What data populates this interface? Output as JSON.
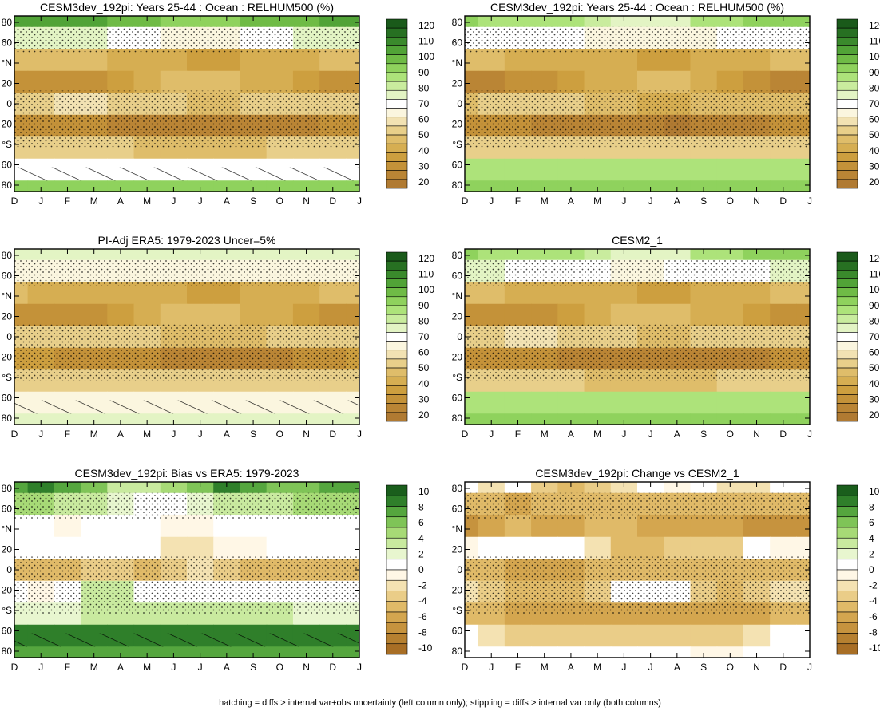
{
  "months": [
    "D",
    "J",
    "F",
    "M",
    "A",
    "M",
    "J",
    "J",
    "A",
    "S",
    "O",
    "N",
    "D",
    "J"
  ],
  "lat_ticks": [
    "80",
    "60",
    "°N",
    "20",
    "0",
    "20",
    "°S",
    "60",
    "80"
  ],
  "colors": {
    "abs": [
      "#b07a32",
      "#ba8535",
      "#c49239",
      "#cd9f3f",
      "#d6ae52",
      "#dfbd6a",
      "#e8cf8a",
      "#f2e2b3",
      "#fbf6df",
      "#ffffff",
      "#e3f4c4",
      "#c9ec9e",
      "#ade37a",
      "#8fd25d",
      "#6fbb46",
      "#51a337",
      "#3a8a2c",
      "#277022",
      "#1a5a1a"
    ],
    "diff": [
      "#a86e25",
      "#b68030",
      "#c6933e",
      "#d4a64f",
      "#e0ba68",
      "#eacd88",
      "#f4e2b2",
      "#fff7e6",
      "#ffffff",
      "#e8f6cf",
      "#c9ea9f",
      "#a7da76",
      "#7fc457",
      "#55a63e",
      "#2f7f2a",
      "#1a5e1c"
    ]
  },
  "colorbar_abs": {
    "labels": [
      "120",
      "110",
      "100",
      "90",
      "80",
      "70",
      "60",
      "50",
      "40",
      "30",
      "20"
    ]
  },
  "colorbar_diff": {
    "labels": [
      "10",
      "8",
      "6",
      "4",
      "2",
      "0",
      "-2",
      "-4",
      "-6",
      "-8",
      "-10"
    ]
  },
  "footnote": "hatching = diffs > internal var+obs uncertainty (left column only); stippling = diffs > internal var only (both columns)",
  "chart_data": [
    {
      "type": "heatmap",
      "title": "CESM3dev_192pi: Years 25-44 : Ocean : RELHUM500 (%)",
      "scale": "abs",
      "hatch": true,
      "x": [
        "D",
        "J",
        "F",
        "M",
        "A",
        "M",
        "J",
        "J",
        "A",
        "S",
        "O",
        "N",
        "D",
        "J"
      ],
      "y": [
        80,
        60,
        40,
        20,
        0,
        -20,
        -40,
        -60,
        -80
      ],
      "values": [
        [
          95,
          96,
          96,
          95,
          93,
          90,
          87,
          86,
          88,
          90,
          92,
          94,
          95,
          95
        ],
        [
          72,
          73,
          72,
          70,
          68,
          66,
          64,
          63,
          64,
          66,
          68,
          70,
          71,
          72
        ],
        [
          48,
          47,
          46,
          45,
          44,
          42,
          40,
          38,
          38,
          40,
          42,
          44,
          46,
          48
        ],
        [
          30,
          31,
          32,
          34,
          38,
          42,
          46,
          48,
          47,
          44,
          40,
          35,
          31,
          30
        ],
        [
          52,
          54,
          55,
          55,
          54,
          52,
          50,
          48,
          48,
          50,
          52,
          53,
          52,
          52
        ],
        [
          34,
          33,
          32,
          30,
          29,
          28,
          27,
          26,
          25,
          25,
          26,
          28,
          31,
          34
        ],
        [
          50,
          50,
          50,
          50,
          50,
          49,
          48,
          48,
          49,
          49,
          50,
          50,
          50,
          50
        ],
        [
          68,
          68,
          68,
          68,
          68,
          68,
          68,
          68,
          68,
          68,
          68,
          68,
          68,
          68
        ],
        [
          88,
          88,
          88,
          88,
          88,
          88,
          88,
          88,
          88,
          88,
          88,
          88,
          88,
          88
        ]
      ]
    },
    {
      "type": "heatmap",
      "title": "CESM3dev_192pi: Years 25-44 : Ocean : RELHUM500 (%)",
      "scale": "abs",
      "hatch": false,
      "x": [
        "D",
        "J",
        "F",
        "M",
        "A",
        "M",
        "J",
        "J",
        "A",
        "S",
        "O",
        "N",
        "D",
        "J"
      ],
      "y": [
        80,
        60,
        40,
        20,
        0,
        -20,
        -40,
        -60,
        -80
      ],
      "values": [
        [
          85,
          84,
          84,
          82,
          80,
          76,
          72,
          70,
          74,
          80,
          84,
          85,
          85,
          85
        ],
        [
          68,
          68,
          67,
          66,
          65,
          64,
          62,
          62,
          63,
          64,
          66,
          67,
          68,
          68
        ],
        [
          46,
          45,
          44,
          43,
          42,
          41,
          40,
          38,
          38,
          40,
          42,
          44,
          45,
          46
        ],
        [
          28,
          29,
          30,
          32,
          36,
          40,
          44,
          46,
          45,
          42,
          38,
          33,
          29,
          28
        ],
        [
          48,
          50,
          51,
          51,
          50,
          48,
          46,
          44,
          44,
          46,
          48,
          49,
          48,
          48
        ],
        [
          33,
          32,
          31,
          29,
          28,
          27,
          26,
          25,
          24,
          25,
          26,
          28,
          30,
          33
        ],
        [
          52,
          52,
          52,
          52,
          52,
          51,
          50,
          50,
          51,
          51,
          52,
          52,
          52,
          52
        ],
        [
          80,
          80,
          80,
          80,
          80,
          80,
          80,
          80,
          80,
          80,
          80,
          80,
          80,
          80
        ],
        [
          88,
          88,
          88,
          88,
          88,
          88,
          88,
          88,
          88,
          88,
          88,
          88,
          88,
          88
        ]
      ]
    },
    {
      "type": "heatmap",
      "title": "PI-Adj ERA5: 1979-2023 Uncer=5%",
      "scale": "abs",
      "hatch": true,
      "x": [
        "D",
        "J",
        "F",
        "M",
        "A",
        "M",
        "J",
        "J",
        "A",
        "S",
        "O",
        "N",
        "D",
        "J"
      ],
      "y": [
        80,
        60,
        40,
        20,
        0,
        -20,
        -40,
        -60,
        -80
      ],
      "values": [
        [
          72,
          72,
          72,
          72,
          72,
          72,
          72,
          72,
          72,
          72,
          72,
          72,
          72,
          72
        ],
        [
          62,
          62,
          62,
          62,
          62,
          62,
          62,
          62,
          62,
          62,
          62,
          62,
          62,
          62
        ],
        [
          45,
          44,
          44,
          43,
          42,
          41,
          40,
          38,
          38,
          40,
          42,
          44,
          45,
          45
        ],
        [
          30,
          31,
          32,
          34,
          38,
          42,
          46,
          48,
          47,
          44,
          40,
          35,
          31,
          30
        ],
        [
          50,
          52,
          53,
          53,
          52,
          50,
          48,
          46,
          46,
          48,
          50,
          51,
          50,
          50
        ],
        [
          36,
          35,
          34,
          32,
          31,
          30,
          29,
          28,
          27,
          28,
          29,
          30,
          33,
          36
        ],
        [
          52,
          52,
          52,
          52,
          52,
          51,
          50,
          50,
          51,
          51,
          52,
          52,
          52,
          52
        ],
        [
          64,
          64,
          64,
          64,
          64,
          64,
          64,
          64,
          64,
          64,
          64,
          64,
          64,
          64
        ],
        [
          72,
          72,
          72,
          72,
          72,
          72,
          72,
          72,
          72,
          72,
          72,
          72,
          72,
          72
        ]
      ]
    },
    {
      "type": "heatmap",
      "title": "CESM2_1",
      "scale": "abs",
      "hatch": false,
      "x": [
        "D",
        "J",
        "F",
        "M",
        "A",
        "M",
        "J",
        "J",
        "A",
        "S",
        "O",
        "N",
        "D",
        "J"
      ],
      "y": [
        80,
        60,
        40,
        20,
        0,
        -20,
        -40,
        -60,
        -80
      ],
      "values": [
        [
          85,
          84,
          84,
          82,
          80,
          76,
          72,
          70,
          74,
          80,
          84,
          85,
          85,
          85
        ],
        [
          70,
          70,
          69,
          68,
          67,
          66,
          64,
          64,
          65,
          66,
          68,
          69,
          70,
          70
        ],
        [
          46,
          45,
          44,
          43,
          42,
          41,
          40,
          38,
          38,
          40,
          42,
          44,
          45,
          46
        ],
        [
          30,
          31,
          32,
          34,
          38,
          42,
          46,
          48,
          47,
          44,
          40,
          35,
          31,
          30
        ],
        [
          52,
          54,
          55,
          55,
          54,
          52,
          50,
          48,
          48,
          50,
          52,
          53,
          52,
          52
        ],
        [
          34,
          33,
          32,
          30,
          29,
          28,
          27,
          26,
          25,
          25,
          26,
          28,
          31,
          34
        ],
        [
          50,
          50,
          50,
          50,
          50,
          49,
          48,
          48,
          49,
          49,
          50,
          50,
          50,
          50
        ],
        [
          80,
          80,
          80,
          80,
          80,
          80,
          80,
          80,
          80,
          80,
          80,
          80,
          80,
          80
        ],
        [
          88,
          88,
          88,
          88,
          88,
          88,
          88,
          88,
          88,
          88,
          88,
          88,
          88,
          88
        ]
      ]
    },
    {
      "type": "heatmap",
      "title": "CESM3dev_192pi: Bias vs ERA5: 1979-2023",
      "scale": "diff",
      "hatch": true,
      "x": [
        "D",
        "J",
        "F",
        "M",
        "A",
        "M",
        "J",
        "J",
        "A",
        "S",
        "O",
        "N",
        "D",
        "J"
      ],
      "y": [
        80,
        60,
        40,
        20,
        0,
        -20,
        -40,
        -60,
        -80
      ],
      "values": [
        [
          10,
          11,
          10,
          8,
          6,
          5,
          7,
          9,
          11,
          10,
          9,
          9,
          10,
          10
        ],
        [
          7,
          7,
          6,
          5,
          4,
          3,
          3,
          4,
          5,
          6,
          6,
          7,
          7,
          7
        ],
        [
          3,
          2,
          1,
          0,
          0,
          0,
          1,
          1,
          2,
          2,
          2,
          3,
          3,
          3
        ],
        [
          2,
          3,
          3,
          2,
          3,
          0,
          -1,
          -1,
          1,
          1,
          3,
          3,
          2,
          2
        ],
        [
          -4,
          -4,
          -3,
          -2,
          -2,
          -3,
          -2,
          -1,
          -2,
          -3,
          -4,
          -4,
          -4,
          -4
        ],
        [
          0,
          1,
          3,
          5,
          5,
          2,
          0,
          0,
          0,
          0,
          0,
          0,
          0,
          0
        ],
        [
          4,
          4,
          4,
          5,
          5,
          5,
          5,
          5,
          5,
          5,
          5,
          4,
          4,
          4
        ],
        [
          11,
          11,
          11,
          11,
          11,
          11,
          11,
          11,
          11,
          11,
          11,
          11,
          11,
          11
        ],
        [
          10,
          10,
          10,
          10,
          10,
          10,
          10,
          10,
          10,
          10,
          10,
          10,
          10,
          10
        ]
      ]
    },
    {
      "type": "heatmap",
      "title": "CESM3dev_192pi: Change vs CESM2_1",
      "scale": "diff",
      "hatch": false,
      "x": [
        "D",
        "J",
        "F",
        "M",
        "A",
        "M",
        "J",
        "J",
        "A",
        "S",
        "O",
        "N",
        "D",
        "J"
      ],
      "y": [
        80,
        60,
        40,
        20,
        0,
        -20,
        -40,
        -60,
        -80
      ],
      "values": [
        [
          0,
          -1,
          0,
          -2,
          -3,
          -2,
          -1,
          0,
          1,
          0,
          -1,
          -1,
          0,
          0
        ],
        [
          -4,
          -4,
          -5,
          -4,
          -4,
          -3,
          -3,
          -4,
          -4,
          -4,
          -4,
          -4,
          -4,
          -4
        ],
        [
          -6,
          -5,
          -4,
          -5,
          -5,
          -4,
          -4,
          -5,
          -5,
          -5,
          -5,
          -6,
          -6,
          -6
        ],
        [
          1,
          2,
          2,
          2,
          3,
          -1,
          -3,
          -3,
          -2,
          -2,
          -2,
          0,
          1,
          1
        ],
        [
          -4,
          -4,
          -5,
          -5,
          -5,
          -4,
          -4,
          -3,
          -3,
          -4,
          -4,
          -4,
          -4,
          -4
        ],
        [
          -1,
          -2,
          -3,
          -3,
          -3,
          -2,
          2,
          3,
          2,
          -2,
          -3,
          -2,
          -1,
          -1
        ],
        [
          -4,
          -4,
          -5,
          -5,
          -5,
          -5,
          -5,
          -5,
          -5,
          -5,
          -5,
          -5,
          -4,
          -4
        ],
        [
          0,
          -1,
          -2,
          -2,
          -2,
          -2,
          -2,
          -2,
          -2,
          -2,
          -2,
          -1,
          0,
          0
        ],
        [
          0,
          0,
          0,
          2,
          2,
          2,
          2,
          2,
          2,
          1,
          1,
          0,
          0,
          0
        ]
      ]
    }
  ]
}
